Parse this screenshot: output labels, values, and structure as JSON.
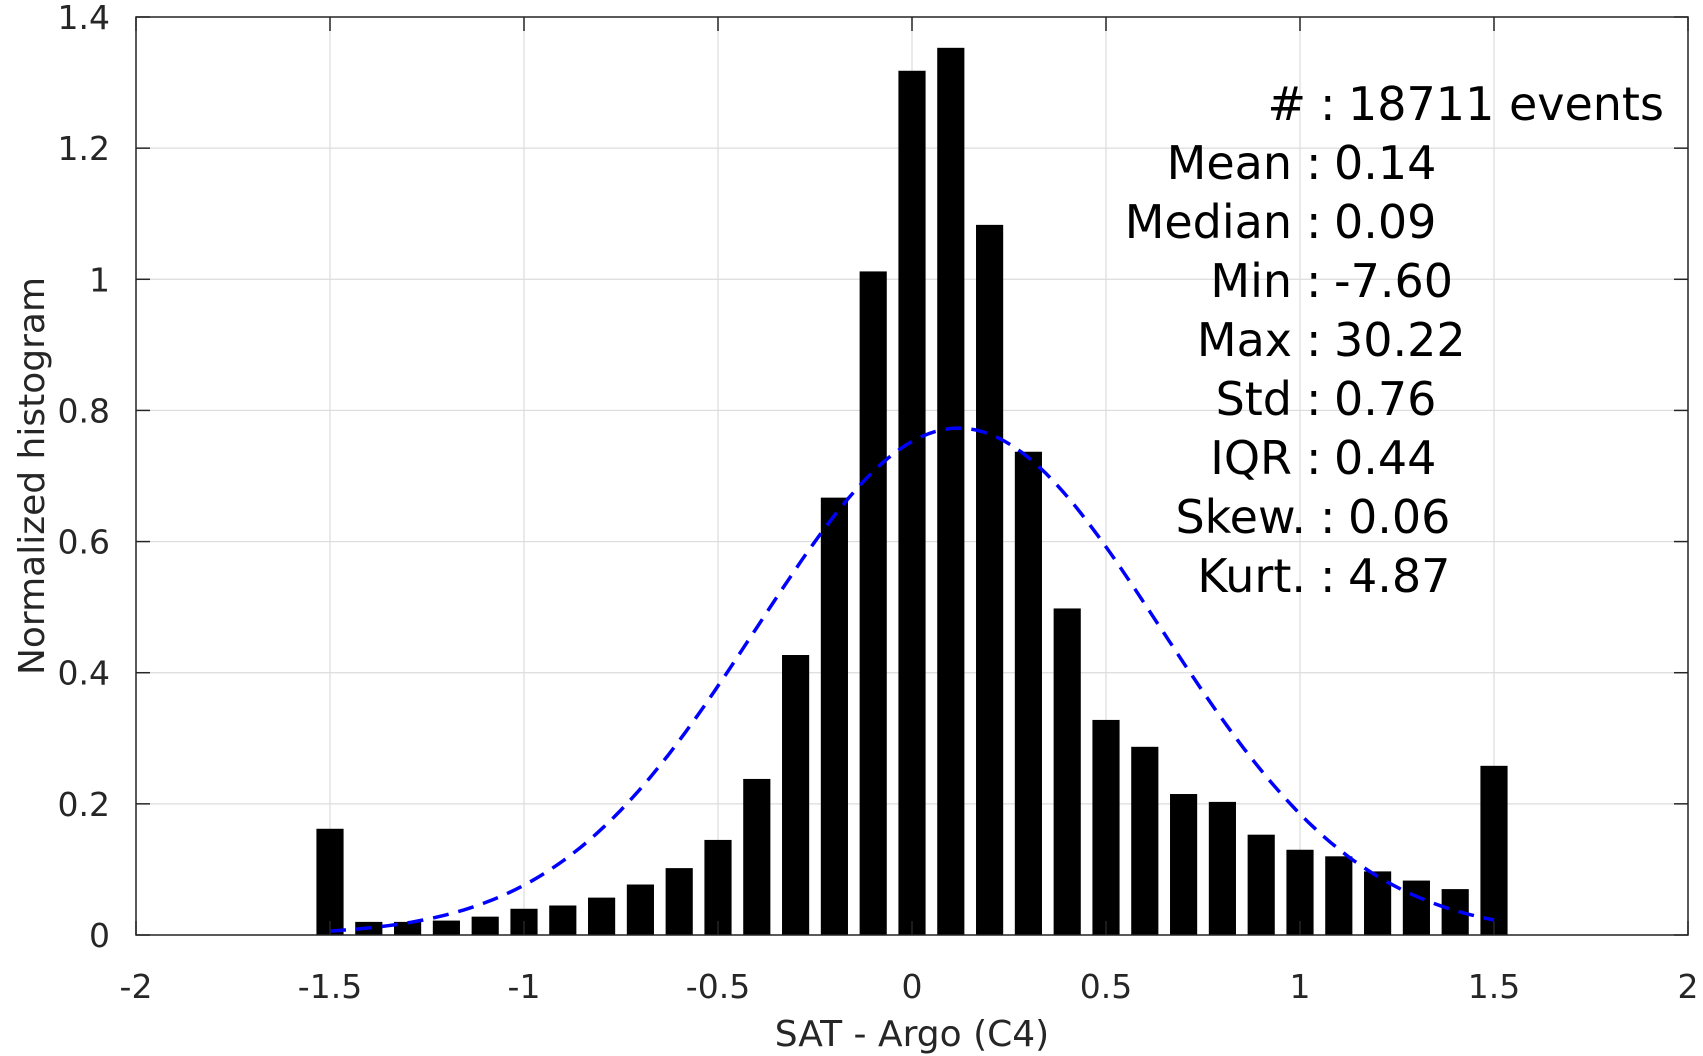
{
  "chart_data": {
    "type": "bar",
    "xlabel": "SAT - Argo (C4)",
    "ylabel": "Normalized histogram",
    "xlim": [
      -2,
      2
    ],
    "ylim": [
      0,
      1.4
    ],
    "grid": true,
    "x_ticks": [
      "-2",
      "-1.5",
      "-1",
      "-0.5",
      "0",
      "0.5",
      "1",
      "1.5",
      "2"
    ],
    "y_ticks": [
      "0",
      "0.2",
      "0.4",
      "0.6",
      "0.8",
      "1",
      "1.2",
      "1.4"
    ],
    "bar_width": 0.07,
    "bars": [
      {
        "x": -1.5,
        "y": 0.162
      },
      {
        "x": -1.4,
        "y": 0.02
      },
      {
        "x": -1.3,
        "y": 0.02
      },
      {
        "x": -1.2,
        "y": 0.022
      },
      {
        "x": -1.1,
        "y": 0.028
      },
      {
        "x": -1.0,
        "y": 0.04
      },
      {
        "x": -0.9,
        "y": 0.045
      },
      {
        "x": -0.8,
        "y": 0.057
      },
      {
        "x": -0.7,
        "y": 0.077
      },
      {
        "x": -0.6,
        "y": 0.102
      },
      {
        "x": -0.5,
        "y": 0.145
      },
      {
        "x": -0.4,
        "y": 0.238
      },
      {
        "x": -0.3,
        "y": 0.427
      },
      {
        "x": -0.2,
        "y": 0.667
      },
      {
        "x": -0.1,
        "y": 1.012
      },
      {
        "x": 0.0,
        "y": 1.318
      },
      {
        "x": 0.1,
        "y": 1.353
      },
      {
        "x": 0.2,
        "y": 1.083
      },
      {
        "x": 0.3,
        "y": 0.737
      },
      {
        "x": 0.4,
        "y": 0.498
      },
      {
        "x": 0.5,
        "y": 0.328
      },
      {
        "x": 0.6,
        "y": 0.287
      },
      {
        "x": 0.7,
        "y": 0.215
      },
      {
        "x": 0.8,
        "y": 0.203
      },
      {
        "x": 0.9,
        "y": 0.153
      },
      {
        "x": 1.0,
        "y": 0.13
      },
      {
        "x": 1.1,
        "y": 0.12
      },
      {
        "x": 1.2,
        "y": 0.097
      },
      {
        "x": 1.3,
        "y": 0.083
      },
      {
        "x": 1.4,
        "y": 0.07
      },
      {
        "x": 1.5,
        "y": 0.258
      }
    ],
    "fit_curve": {
      "style": "dashed",
      "color": "#0000ff",
      "mean": 0.12,
      "std": 0.52,
      "x_range": [
        -1.5,
        1.5
      ],
      "peak": 0.773
    },
    "bar_color": "#000000",
    "stats": [
      {
        "label": "#",
        "separator": " : ",
        "value": "18711 events"
      },
      {
        "label": "Mean",
        "separator": " : ",
        "value": "0.14"
      },
      {
        "label": "Median",
        "separator": " : ",
        "value": "0.09"
      },
      {
        "label": "Min",
        "separator": " : ",
        "value": "-7.60"
      },
      {
        "label": "Max",
        "separator": " : ",
        "value": "30.22"
      },
      {
        "label": "Std",
        "separator": " : ",
        "value": "0.76"
      },
      {
        "label": "IQR",
        "separator": " : ",
        "value": "0.44"
      },
      {
        "label": "Skew.",
        "separator": " : ",
        "value": "0.06"
      },
      {
        "label": "Kurt.",
        "separator": " : ",
        "value": "4.87"
      }
    ]
  }
}
